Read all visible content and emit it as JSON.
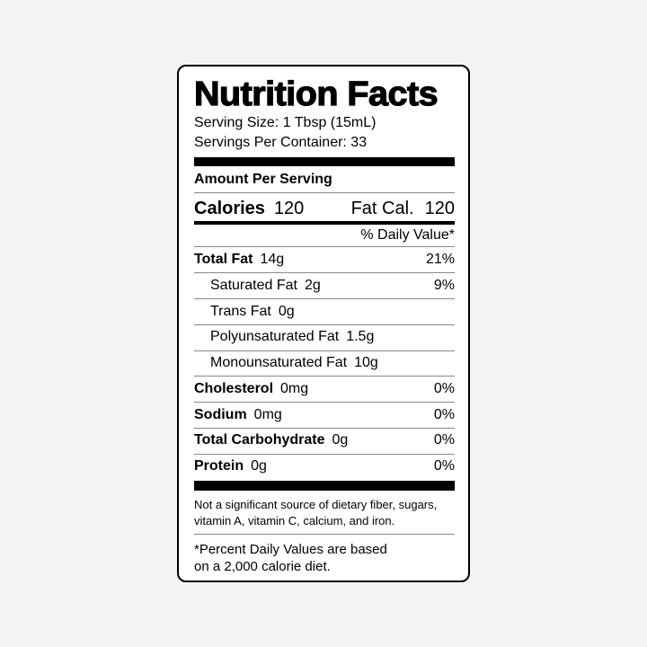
{
  "title": "Nutrition Facts",
  "serving_size": "Serving Size: 1 Tbsp (15mL)",
  "servings_per_container": "Servings Per Container: 33",
  "amount_per_serving": "Amount Per Serving",
  "calories": {
    "label": "Calories",
    "value": "120",
    "fat_label": "Fat Cal.",
    "fat_value": "120"
  },
  "daily_value_header": "% Daily Value*",
  "nutrients": [
    {
      "name": "Total Fat",
      "amount": "14g",
      "dv": "21%",
      "bold": true
    },
    {
      "name": "Saturated Fat",
      "amount": "2g",
      "dv": "9%",
      "bold": false
    },
    {
      "name": "Trans Fat",
      "amount": "0g",
      "dv": "",
      "bold": false
    },
    {
      "name": "Polyunsaturated Fat",
      "amount": "1.5g",
      "dv": "",
      "bold": false
    },
    {
      "name": "Monounsaturated Fat",
      "amount": "10g",
      "dv": "",
      "bold": false
    },
    {
      "name": "Cholesterol",
      "amount": "0mg",
      "dv": "0%",
      "bold": true
    },
    {
      "name": "Sodium",
      "amount": "0mg",
      "dv": "0%",
      "bold": true
    },
    {
      "name": "Total Carbohydrate",
      "amount": "0g",
      "dv": "0%",
      "bold": true
    },
    {
      "name": "Protein",
      "amount": "0g",
      "dv": "0%",
      "bold": true
    }
  ],
  "note_line1": "Not a significant source of dietary fiber, sugars,",
  "note_line2": "vitamin A, vitamin C, calcium, and iron.",
  "footnote_line1": "*Percent Daily Values are based",
  "footnote_line2": "on a 2,000 calorie diet."
}
